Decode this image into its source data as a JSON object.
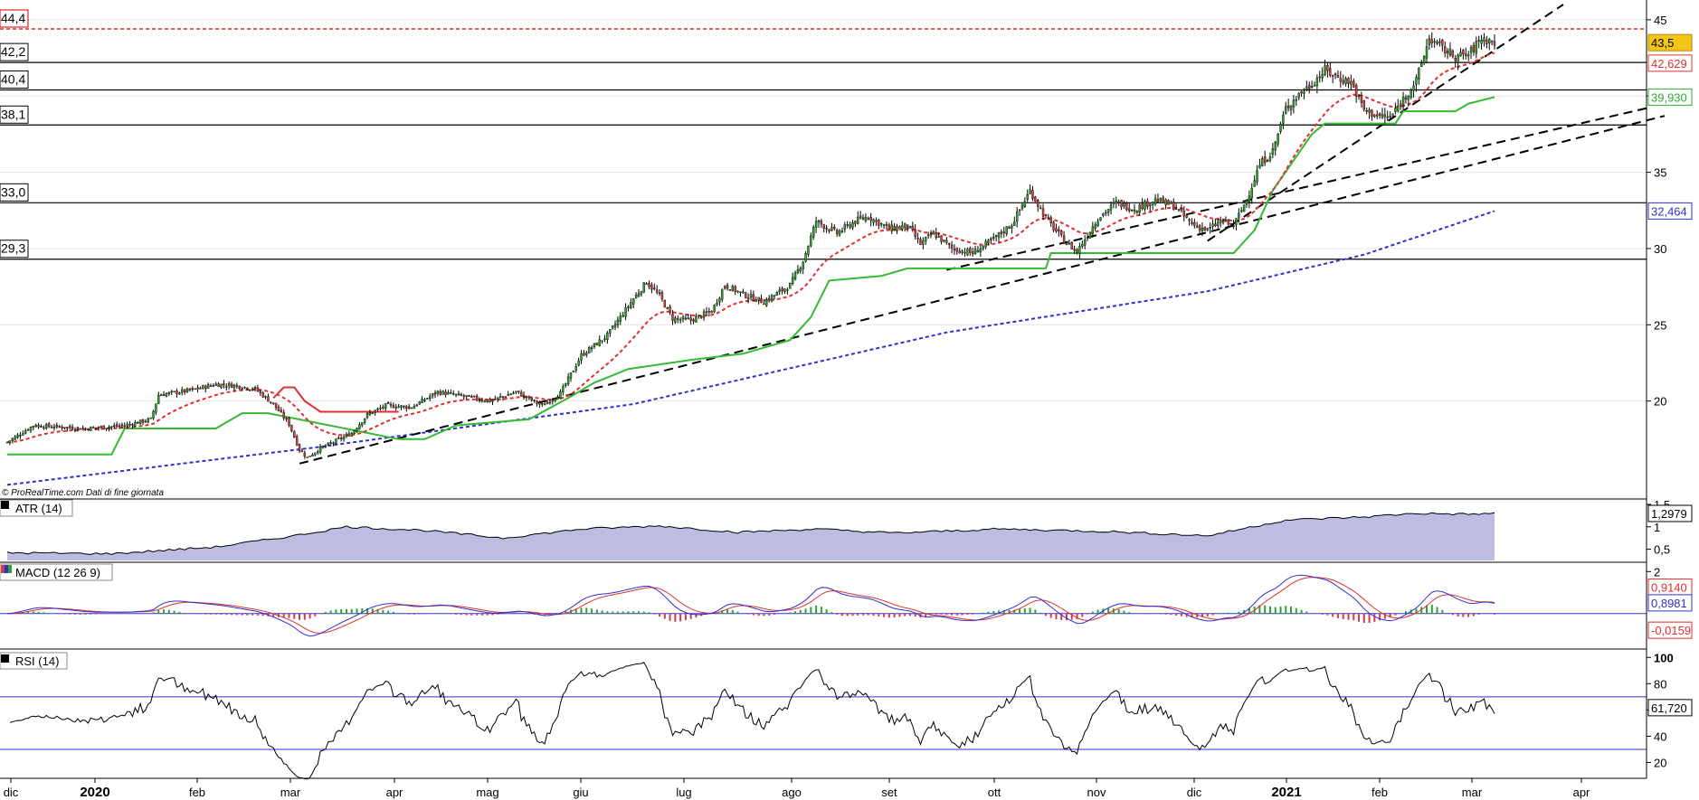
{
  "chart_data": [
    {
      "type": "candlestick",
      "title": "",
      "credit": "© ProRealTime.com  Dati di fine giornata",
      "y_range": [
        15,
        46
      ],
      "y_ticks": [
        "20",
        "25",
        "30",
        "35",
        "40",
        "45"
      ],
      "x_months": [
        {
          "label": "dic",
          "year": false
        },
        {
          "label": "2020",
          "year": true
        },
        {
          "label": "feb",
          "year": false
        },
        {
          "label": "mar",
          "year": false
        },
        {
          "label": "apr",
          "year": false
        },
        {
          "label": "mag",
          "year": false
        },
        {
          "label": "giu",
          "year": false
        },
        {
          "label": "lug",
          "year": false
        },
        {
          "label": "ago",
          "year": false
        },
        {
          "label": "set",
          "year": false
        },
        {
          "label": "ott",
          "year": false
        },
        {
          "label": "nov",
          "year": false
        },
        {
          "label": "dic",
          "year": false
        },
        {
          "label": "2021",
          "year": true
        },
        {
          "label": "feb",
          "year": false
        },
        {
          "label": "mar",
          "year": false
        },
        {
          "label": "apr",
          "year": false
        }
      ],
      "price_anchors": [
        [
          0,
          17.3
        ],
        [
          10,
          18.4
        ],
        [
          30,
          18.2
        ],
        [
          45,
          18.4
        ],
        [
          55,
          18.8
        ],
        [
          58,
          20.4
        ],
        [
          70,
          20.7
        ],
        [
          80,
          21.1
        ],
        [
          88,
          21.0
        ],
        [
          95,
          20.8
        ],
        [
          102,
          19.8
        ],
        [
          108,
          18.5
        ],
        [
          112,
          16.8
        ],
        [
          115,
          16.3
        ],
        [
          120,
          16.9
        ],
        [
          125,
          17.3
        ],
        [
          132,
          17.9
        ],
        [
          138,
          19.1
        ],
        [
          145,
          19.7
        ],
        [
          155,
          19.6
        ],
        [
          165,
          20.6
        ],
        [
          175,
          20.3
        ],
        [
          185,
          20.0
        ],
        [
          195,
          20.6
        ],
        [
          205,
          19.7
        ],
        [
          212,
          20.5
        ],
        [
          220,
          23.0
        ],
        [
          230,
          24.3
        ],
        [
          240,
          26.7
        ],
        [
          245,
          27.8
        ],
        [
          250,
          26.9
        ],
        [
          255,
          25.4
        ],
        [
          262,
          25.3
        ],
        [
          270,
          25.9
        ],
        [
          275,
          27.6
        ],
        [
          282,
          27.0
        ],
        [
          290,
          26.5
        ],
        [
          300,
          27.6
        ],
        [
          305,
          29.2
        ],
        [
          310,
          31.8
        ],
        [
          318,
          31.0
        ],
        [
          325,
          31.8
        ],
        [
          330,
          32.1
        ],
        [
          338,
          31.3
        ],
        [
          345,
          31.5
        ],
        [
          350,
          30.3
        ],
        [
          355,
          31.0
        ],
        [
          362,
          30.0
        ],
        [
          370,
          29.7
        ],
        [
          378,
          30.6
        ],
        [
          385,
          31.6
        ],
        [
          392,
          33.8
        ],
        [
          398,
          32.0
        ],
        [
          405,
          30.5
        ],
        [
          410,
          29.8
        ],
        [
          418,
          32.0
        ],
        [
          425,
          33.0
        ],
        [
          432,
          32.6
        ],
        [
          440,
          33.2
        ],
        [
          447,
          32.8
        ],
        [
          454,
          31.6
        ],
        [
          460,
          31.2
        ],
        [
          465,
          31.8
        ],
        [
          470,
          31.5
        ],
        [
          475,
          33.2
        ],
        [
          480,
          35.5
        ],
        [
          485,
          36.4
        ],
        [
          490,
          39.2
        ],
        [
          495,
          40.1
        ],
        [
          500,
          40.8
        ],
        [
          505,
          41.7
        ],
        [
          510,
          41.2
        ],
        [
          515,
          40.9
        ],
        [
          520,
          39.1
        ],
        [
          525,
          38.7
        ],
        [
          530,
          38.6
        ],
        [
          535,
          39.8
        ],
        [
          540,
          41.0
        ],
        [
          545,
          43.8
        ],
        [
          550,
          43.1
        ],
        [
          555,
          42.6
        ],
        [
          560,
          42.7
        ],
        [
          565,
          43.8
        ],
        [
          570,
          43.5
        ]
      ],
      "overlays": {
        "ma_red_dashed": "#e03030",
        "ma_blue_dashed": "#3030d0",
        "trailing_stop_green": "#33bb33",
        "trailing_stop_red": "#e03030",
        "trendline_black_dashed": "#000000"
      },
      "horizontal_levels": [
        {
          "label": "44,4",
          "value": 44.4,
          "style": "dashed",
          "color": "#cc0000"
        },
        {
          "label": "42,2",
          "value": 42.2,
          "style": "solid",
          "color": "#000000"
        },
        {
          "label": "40,4",
          "value": 40.4,
          "style": "solid",
          "color": "#000000"
        },
        {
          "label": "38,1",
          "value": 38.1,
          "style": "solid",
          "color": "#000000"
        },
        {
          "label": "33,0",
          "value": 33.0,
          "style": "solid",
          "color": "#000000"
        },
        {
          "label": "29,3",
          "value": 29.3,
          "style": "solid",
          "color": "#000000"
        }
      ],
      "value_boxes": [
        {
          "label": "43,5",
          "value": 43.5,
          "bg": "#f5c518",
          "fg": "#000000",
          "border": "#b08a00"
        },
        {
          "label": "42,629",
          "value": 42.629,
          "bg": "#ffffff",
          "fg": "#e03030",
          "border": "#e03030"
        },
        {
          "label": "39,930",
          "value": 39.93,
          "bg": "#ffffff",
          "fg": "#33aa33",
          "border": "#33aa33"
        },
        {
          "label": "32,464",
          "value": 32.464,
          "bg": "#ffffff",
          "fg": "#3030d0",
          "border": "#3030d0"
        }
      ],
      "colors": {
        "up": "#2ea32e",
        "down": "#d04040"
      }
    },
    {
      "type": "area",
      "title": "ATR (14)",
      "y_ticks": [
        "1,5",
        "1",
        "0,5"
      ],
      "y_range": [
        0.25,
        1.6
      ],
      "current_label": "1,2979",
      "fill_color": "#9a9ad6",
      "line_color": "#000000"
    },
    {
      "type": "macd",
      "title": "MACD (12 26 9)",
      "y_ticks": [
        "2"
      ],
      "y_range": [
        -1.6,
        2.4
      ],
      "labels": [
        {
          "label": "0,9140",
          "value": 0.914,
          "color": "#e03030"
        },
        {
          "label": "0,8981",
          "value": 0.8981,
          "color": "#3030d0"
        },
        {
          "label": "-0,0159",
          "value": -0.0159,
          "color": "#e03030"
        }
      ],
      "colors": {
        "macd": "#3030d0",
        "signal": "#e03030",
        "hist_pos": "#2ea32e",
        "hist_neg": "#d04040"
      }
    },
    {
      "type": "line",
      "title": "RSI (14)",
      "y_ticks": [
        "100",
        "80",
        "60",
        "40",
        "20"
      ],
      "y_range": [
        10,
        105
      ],
      "current_label": "61,720",
      "levels": [
        70,
        30
      ],
      "line_color": "#000000",
      "level_color": "#3030d0"
    }
  ]
}
